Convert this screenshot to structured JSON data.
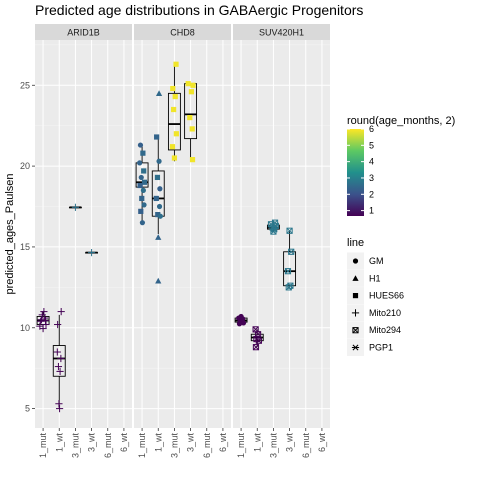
{
  "title": "Predicted age distributions in GABAergic Progenitors",
  "chart_data": {
    "type": "box+jitter",
    "facets": [
      "ARID1B",
      "CHD8",
      "SUV420H1"
    ],
    "categories": [
      "1_mut",
      "1_wt",
      "3_mut",
      "3_wt",
      "6_mut",
      "6_wt"
    ],
    "xlabel": "",
    "ylabel": "predicted_ages_Paulsen",
    "ylim": [
      3.8,
      27.8
    ],
    "yticks": [
      5,
      10,
      15,
      20,
      25
    ],
    "grid": true,
    "color_legend": {
      "title": "round(age_months, 2)",
      "range": [
        0.67,
        6
      ],
      "ticks": [
        1,
        2,
        3,
        4,
        5,
        6
      ],
      "gradient": [
        "#440154",
        "#3b528b",
        "#21908c",
        "#5dc963",
        "#fde725"
      ]
    },
    "shape_legend": {
      "title": "line",
      "items": [
        {
          "label": "GM",
          "shape": "circle"
        },
        {
          "label": "H1",
          "shape": "triangle"
        },
        {
          "label": "HUES66",
          "shape": "square"
        },
        {
          "label": "Mito210",
          "shape": "plus"
        },
        {
          "label": "Mito294",
          "shape": "boxx"
        },
        {
          "label": "PGP1",
          "shape": "asterisk"
        }
      ]
    },
    "boxes": [
      {
        "facet": "ARID1B",
        "category": "1_mut",
        "min": 9.9,
        "q1": 10.2,
        "median": 10.45,
        "q3": 10.7,
        "max": 11.0
      },
      {
        "facet": "ARID1B",
        "category": "1_wt",
        "min": 5.0,
        "q1": 7.0,
        "median": 8.1,
        "q3": 8.9,
        "max": 10.8
      },
      {
        "facet": "ARID1B",
        "category": "3_mut",
        "min": 17.45,
        "q1": 17.45,
        "median": 17.45,
        "q3": 17.45,
        "max": 17.45
      },
      {
        "facet": "ARID1B",
        "category": "3_wt",
        "min": 14.65,
        "q1": 14.65,
        "median": 14.65,
        "q3": 14.65,
        "max": 14.65
      },
      {
        "facet": "CHD8",
        "category": "1_mut",
        "min": 16.5,
        "q1": 18.7,
        "median": 19.0,
        "q3": 20.2,
        "max": 21.3
      },
      {
        "facet": "CHD8",
        "category": "1_wt",
        "min": 15.8,
        "q1": 16.9,
        "median": 18.0,
        "q3": 19.7,
        "max": 21.8
      },
      {
        "facet": "CHD8",
        "category": "3_mut",
        "min": 20.3,
        "q1": 21.0,
        "median": 22.6,
        "q3": 24.5,
        "max": 26.3
      },
      {
        "facet": "CHD8",
        "category": "3_wt",
        "min": 20.4,
        "q1": 21.7,
        "median": 23.2,
        "q3": 25.1,
        "max": 25.1
      },
      {
        "facet": "SUV420H1",
        "category": "1_mut",
        "min": 10.2,
        "q1": 10.35,
        "median": 10.45,
        "q3": 10.6,
        "max": 10.7
      },
      {
        "facet": "SUV420H1",
        "category": "1_wt",
        "min": 8.8,
        "q1": 9.2,
        "median": 9.4,
        "q3": 9.6,
        "max": 9.9
      },
      {
        "facet": "SUV420H1",
        "category": "3_mut",
        "min": 15.9,
        "q1": 16.1,
        "median": 16.2,
        "q3": 16.35,
        "max": 16.5
      },
      {
        "facet": "SUV420H1",
        "category": "3_wt",
        "min": 12.5,
        "q1": 12.6,
        "median": 13.5,
        "q3": 14.7,
        "max": 16.0
      }
    ],
    "points": [
      {
        "facet": "ARID1B",
        "category": "1_mut",
        "dx": -0.15,
        "y": 10.4,
        "shape": "plus",
        "age": 0.7
      },
      {
        "facet": "ARID1B",
        "category": "1_mut",
        "dx": -0.05,
        "y": 10.8,
        "shape": "plus",
        "age": 0.7
      },
      {
        "facet": "ARID1B",
        "category": "1_mut",
        "dx": 0.1,
        "y": 10.6,
        "shape": "plus",
        "age": 0.7
      },
      {
        "facet": "ARID1B",
        "category": "1_mut",
        "dx": 0.18,
        "y": 10.2,
        "shape": "plus",
        "age": 0.7
      },
      {
        "facet": "ARID1B",
        "category": "1_mut",
        "dx": -0.2,
        "y": 10.1,
        "shape": "plus",
        "age": 0.7
      },
      {
        "facet": "ARID1B",
        "category": "1_mut",
        "dx": 0.05,
        "y": 11.0,
        "shape": "plus",
        "age": 0.7
      },
      {
        "facet": "ARID1B",
        "category": "1_mut",
        "dx": 0.0,
        "y": 9.95,
        "shape": "plus",
        "age": 0.7
      },
      {
        "facet": "ARID1B",
        "category": "1_mut",
        "dx": -0.1,
        "y": 10.5,
        "shape": "plus",
        "age": 0.7
      },
      {
        "facet": "ARID1B",
        "category": "1_mut",
        "dx": 0.15,
        "y": 10.45,
        "shape": "plus",
        "age": 0.7
      },
      {
        "facet": "ARID1B",
        "category": "1_wt",
        "dx": -0.1,
        "y": 10.2,
        "shape": "plus",
        "age": 0.7
      },
      {
        "facet": "ARID1B",
        "category": "1_wt",
        "dx": 0.12,
        "y": 11.0,
        "shape": "plus",
        "age": 0.7
      },
      {
        "facet": "ARID1B",
        "category": "1_wt",
        "dx": -0.12,
        "y": 8.5,
        "shape": "plus",
        "age": 0.7
      },
      {
        "facet": "ARID1B",
        "category": "1_wt",
        "dx": 0.1,
        "y": 8.1,
        "shape": "plus",
        "age": 0.7
      },
      {
        "facet": "ARID1B",
        "category": "1_wt",
        "dx": -0.05,
        "y": 7.6,
        "shape": "plus",
        "age": 0.7
      },
      {
        "facet": "ARID1B",
        "category": "1_wt",
        "dx": 0.05,
        "y": 7.3,
        "shape": "plus",
        "age": 0.7
      },
      {
        "facet": "ARID1B",
        "category": "1_wt",
        "dx": -0.02,
        "y": 5.3,
        "shape": "plus",
        "age": 0.7
      },
      {
        "facet": "ARID1B",
        "category": "1_wt",
        "dx": 0.02,
        "y": 5.0,
        "shape": "plus",
        "age": 0.7
      },
      {
        "facet": "ARID1B",
        "category": "3_mut",
        "dx": 0.0,
        "y": 17.45,
        "shape": "plus",
        "age": 2.7
      },
      {
        "facet": "ARID1B",
        "category": "3_wt",
        "dx": 0.0,
        "y": 14.65,
        "shape": "plus",
        "age": 2.7
      },
      {
        "facet": "CHD8",
        "category": "1_mut",
        "dx": -0.1,
        "y": 21.3,
        "shape": "circle",
        "age": 2.3
      },
      {
        "facet": "CHD8",
        "category": "1_mut",
        "dx": 0.05,
        "y": 20.8,
        "shape": "square",
        "age": 2.5
      },
      {
        "facet": "CHD8",
        "category": "1_mut",
        "dx": -0.15,
        "y": 20.2,
        "shape": "circle",
        "age": 2.4
      },
      {
        "facet": "CHD8",
        "category": "1_mut",
        "dx": 0.1,
        "y": 19.7,
        "shape": "square",
        "age": 2.6
      },
      {
        "facet": "CHD8",
        "category": "1_mut",
        "dx": -0.05,
        "y": 19.3,
        "shape": "circle",
        "age": 2.4
      },
      {
        "facet": "CHD8",
        "category": "1_mut",
        "dx": 0.15,
        "y": 19.0,
        "shape": "square",
        "age": 2.5
      },
      {
        "facet": "CHD8",
        "category": "1_mut",
        "dx": -0.12,
        "y": 18.8,
        "shape": "square",
        "age": 2.3
      },
      {
        "facet": "CHD8",
        "category": "1_mut",
        "dx": 0.08,
        "y": 18.5,
        "shape": "circle",
        "age": 2.6
      },
      {
        "facet": "CHD8",
        "category": "1_mut",
        "dx": -0.02,
        "y": 18.0,
        "shape": "square",
        "age": 2.4
      },
      {
        "facet": "CHD8",
        "category": "1_mut",
        "dx": 0.12,
        "y": 17.6,
        "shape": "circle",
        "age": 2.5
      },
      {
        "facet": "CHD8",
        "category": "1_mut",
        "dx": -0.08,
        "y": 17.2,
        "shape": "square",
        "age": 2.3
      },
      {
        "facet": "CHD8",
        "category": "1_mut",
        "dx": 0.02,
        "y": 16.5,
        "shape": "circle",
        "age": 2.4
      },
      {
        "facet": "CHD8",
        "category": "1_wt",
        "dx": -0.1,
        "y": 21.8,
        "shape": "square",
        "age": 2.4
      },
      {
        "facet": "CHD8",
        "category": "1_wt",
        "dx": 0.05,
        "y": 20.3,
        "shape": "circle",
        "age": 2.5
      },
      {
        "facet": "CHD8",
        "category": "1_wt",
        "dx": -0.05,
        "y": 19.3,
        "shape": "square",
        "age": 2.6
      },
      {
        "facet": "CHD8",
        "category": "1_wt",
        "dx": 0.1,
        "y": 18.6,
        "shape": "circle",
        "age": 2.3
      },
      {
        "facet": "CHD8",
        "category": "1_wt",
        "dx": -0.12,
        "y": 18.0,
        "shape": "square",
        "age": 2.4
      },
      {
        "facet": "CHD8",
        "category": "1_wt",
        "dx": 0.08,
        "y": 17.5,
        "shape": "circle",
        "age": 2.5
      },
      {
        "facet": "CHD8",
        "category": "1_wt",
        "dx": -0.03,
        "y": 17.0,
        "shape": "square",
        "age": 2.4
      },
      {
        "facet": "CHD8",
        "category": "1_wt",
        "dx": 0.13,
        "y": 16.9,
        "shape": "circle",
        "age": 2.6
      },
      {
        "facet": "CHD8",
        "category": "1_wt",
        "dx": 0.0,
        "y": 15.6,
        "shape": "triangle",
        "age": 2.4
      },
      {
        "facet": "CHD8",
        "category": "1_wt",
        "dx": 0.05,
        "y": 24.5,
        "shape": "triangle",
        "age": 2.5
      },
      {
        "facet": "CHD8",
        "category": "1_wt",
        "dx": 0.0,
        "y": 12.9,
        "shape": "triangle",
        "age": 2.4
      },
      {
        "facet": "CHD8",
        "category": "3_mut",
        "dx": 0.1,
        "y": 26.3,
        "shape": "square",
        "age": 5.9
      },
      {
        "facet": "CHD8",
        "category": "3_mut",
        "dx": -0.1,
        "y": 24.8,
        "shape": "square",
        "age": 5.9
      },
      {
        "facet": "CHD8",
        "category": "3_mut",
        "dx": 0.05,
        "y": 24.3,
        "shape": "square",
        "age": 5.9
      },
      {
        "facet": "CHD8",
        "category": "3_mut",
        "dx": -0.05,
        "y": 23.5,
        "shape": "square",
        "age": 5.9
      },
      {
        "facet": "CHD8",
        "category": "3_mut",
        "dx": 0.12,
        "y": 22.0,
        "shape": "square",
        "age": 5.9
      },
      {
        "facet": "CHD8",
        "category": "3_mut",
        "dx": -0.12,
        "y": 21.2,
        "shape": "square",
        "age": 5.9
      },
      {
        "facet": "CHD8",
        "category": "3_mut",
        "dx": 0.0,
        "y": 20.5,
        "shape": "square",
        "age": 5.9
      },
      {
        "facet": "CHD8",
        "category": "3_wt",
        "dx": -0.15,
        "y": 25.1,
        "shape": "square",
        "age": 5.9
      },
      {
        "facet": "CHD8",
        "category": "3_wt",
        "dx": 0.15,
        "y": 25.0,
        "shape": "square",
        "age": 5.9
      },
      {
        "facet": "CHD8",
        "category": "3_wt",
        "dx": 0.05,
        "y": 24.6,
        "shape": "square",
        "age": 5.9
      },
      {
        "facet": "CHD8",
        "category": "3_wt",
        "dx": -0.05,
        "y": 23.0,
        "shape": "square",
        "age": 5.9
      },
      {
        "facet": "CHD8",
        "category": "3_wt",
        "dx": 0.1,
        "y": 22.3,
        "shape": "square",
        "age": 5.9
      },
      {
        "facet": "CHD8",
        "category": "3_wt",
        "dx": 0.12,
        "y": 20.4,
        "shape": "square",
        "age": 5.9
      },
      {
        "facet": "SUV420H1",
        "category": "1_mut",
        "dx": -0.15,
        "y": 10.6,
        "shape": "circle",
        "age": 0.7
      },
      {
        "facet": "SUV420H1",
        "category": "1_mut",
        "dx": -0.05,
        "y": 10.4,
        "shape": "circle",
        "age": 0.7
      },
      {
        "facet": "SUV420H1",
        "category": "1_mut",
        "dx": 0.05,
        "y": 10.5,
        "shape": "circle",
        "age": 0.7
      },
      {
        "facet": "SUV420H1",
        "category": "1_mut",
        "dx": 0.15,
        "y": 10.3,
        "shape": "circle",
        "age": 0.7
      },
      {
        "facet": "SUV420H1",
        "category": "1_mut",
        "dx": 0.0,
        "y": 10.7,
        "shape": "circle",
        "age": 0.7
      },
      {
        "facet": "SUV420H1",
        "category": "1_mut",
        "dx": -0.1,
        "y": 10.25,
        "shape": "circle",
        "age": 0.7
      },
      {
        "facet": "SUV420H1",
        "category": "1_mut",
        "dx": 0.1,
        "y": 10.55,
        "shape": "circle",
        "age": 0.7
      },
      {
        "facet": "SUV420H1",
        "category": "1_wt",
        "dx": -0.1,
        "y": 9.9,
        "shape": "boxx",
        "age": 0.7
      },
      {
        "facet": "SUV420H1",
        "category": "1_wt",
        "dx": 0.05,
        "y": 9.6,
        "shape": "boxx",
        "age": 0.7
      },
      {
        "facet": "SUV420H1",
        "category": "1_wt",
        "dx": -0.05,
        "y": 9.3,
        "shape": "boxx",
        "age": 0.7
      },
      {
        "facet": "SUV420H1",
        "category": "1_wt",
        "dx": 0.1,
        "y": 9.2,
        "shape": "boxx",
        "age": 0.7
      },
      {
        "facet": "SUV420H1",
        "category": "1_wt",
        "dx": -0.08,
        "y": 8.8,
        "shape": "boxx",
        "age": 0.7
      },
      {
        "facet": "SUV420H1",
        "category": "3_mut",
        "dx": -0.15,
        "y": 16.4,
        "shape": "boxx",
        "age": 2.8
      },
      {
        "facet": "SUV420H1",
        "category": "3_mut",
        "dx": -0.05,
        "y": 16.2,
        "shape": "boxx",
        "age": 2.8
      },
      {
        "facet": "SUV420H1",
        "category": "3_mut",
        "dx": 0.05,
        "y": 16.1,
        "shape": "boxx",
        "age": 2.8
      },
      {
        "facet": "SUV420H1",
        "category": "3_mut",
        "dx": 0.15,
        "y": 16.3,
        "shape": "boxx",
        "age": 2.8
      },
      {
        "facet": "SUV420H1",
        "category": "3_mut",
        "dx": 0.0,
        "y": 15.95,
        "shape": "boxx",
        "age": 2.8
      },
      {
        "facet": "SUV420H1",
        "category": "3_mut",
        "dx": 0.1,
        "y": 16.5,
        "shape": "boxx",
        "age": 2.8
      },
      {
        "facet": "SUV420H1",
        "category": "3_wt",
        "dx": 0.0,
        "y": 16.0,
        "shape": "boxx",
        "age": 2.8
      },
      {
        "facet": "SUV420H1",
        "category": "3_wt",
        "dx": 0.1,
        "y": 14.7,
        "shape": "boxx",
        "age": 2.8
      },
      {
        "facet": "SUV420H1",
        "category": "3_wt",
        "dx": -0.1,
        "y": 13.5,
        "shape": "boxx",
        "age": 2.8
      },
      {
        "facet": "SUV420H1",
        "category": "3_wt",
        "dx": 0.05,
        "y": 12.6,
        "shape": "boxx",
        "age": 2.8
      },
      {
        "facet": "SUV420H1",
        "category": "3_wt",
        "dx": -0.05,
        "y": 12.5,
        "shape": "boxx",
        "age": 2.8
      }
    ]
  }
}
